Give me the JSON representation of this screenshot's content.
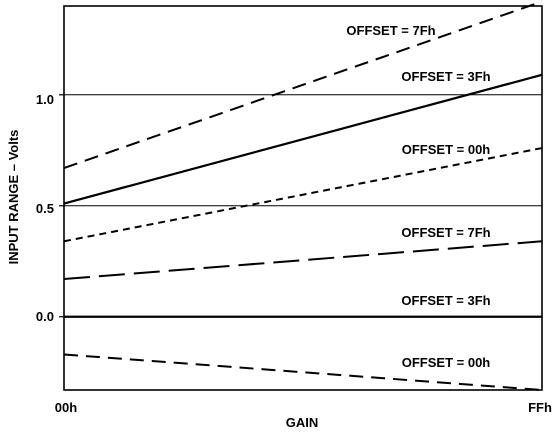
{
  "chart_data": {
    "type": "line",
    "title": "",
    "xlabel": "GAIN",
    "ylabel": "INPUT RANGE – Volts",
    "x_ticks": [
      "00h",
      "FFh"
    ],
    "y_ticks": [
      "0.0",
      "0.5",
      "1.0"
    ],
    "xlim": [
      0,
      255
    ],
    "ylim": [
      -0.33,
      1.4
    ],
    "grid": "horizontal lines at 0.5 and 1.0",
    "series": [
      {
        "name": "OFFSET = 7Fh",
        "x": [
          0,
          255
        ],
        "y": [
          0.67,
          1.42
        ],
        "style": "dashed"
      },
      {
        "name": "OFFSET = 3Fh",
        "x": [
          0,
          255
        ],
        "y": [
          0.51,
          1.09
        ],
        "style": "solid"
      },
      {
        "name": "OFFSET = 00h",
        "x": [
          0,
          255
        ],
        "y": [
          0.34,
          0.76
        ],
        "style": "short-dashed"
      },
      {
        "name": "OFFSET = 7Fh",
        "x": [
          0,
          255
        ],
        "y": [
          0.17,
          0.34
        ],
        "style": "long-dashed"
      },
      {
        "name": "OFFSET = 3Fh",
        "x": [
          0,
          255
        ],
        "y": [
          0.0,
          0.0
        ],
        "style": "solid"
      },
      {
        "name": "OFFSET = 00h",
        "x": [
          0,
          255
        ],
        "y": [
          -0.17,
          -0.33
        ],
        "style": "dashed"
      }
    ]
  },
  "colors": {
    "ink": "#000000",
    "background": "#ffffff"
  }
}
